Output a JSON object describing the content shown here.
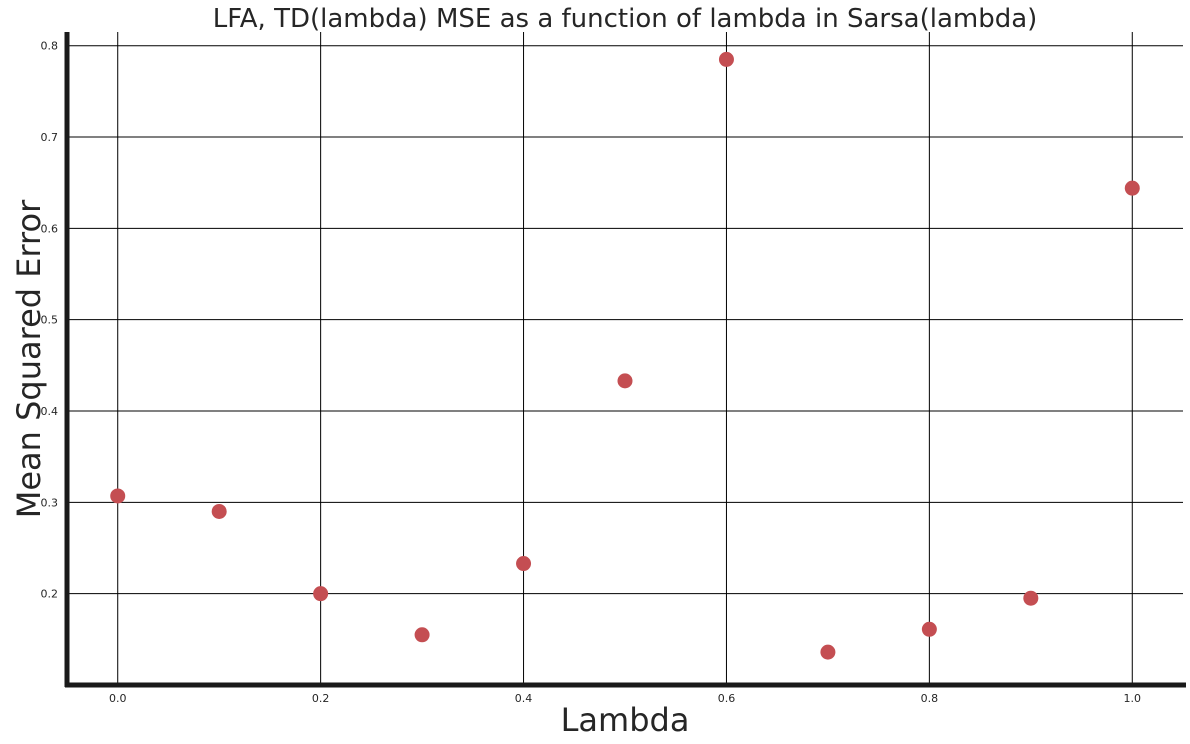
{
  "chart_data": {
    "type": "scatter",
    "title": "LFA, TD(lambda) MSE as a function of lambda in Sarsa(lambda)",
    "xlabel": "Lambda",
    "ylabel": "Mean Squared Error",
    "xlim": [
      -0.05,
      1.05
    ],
    "ylim": [
      0.1,
      0.815
    ],
    "xticks": [
      "0.0",
      "0.2",
      "0.4",
      "0.6",
      "0.8",
      "1.0"
    ],
    "yticks": [
      "0.2",
      "0.3",
      "0.4",
      "0.5",
      "0.6",
      "0.7",
      "0.8"
    ],
    "grid": true,
    "marker_color": "#c44e52",
    "series": [
      {
        "x": [
          0.0,
          0.1,
          0.2,
          0.3,
          0.4,
          0.5,
          0.6,
          0.7,
          0.8,
          0.9,
          1.0
        ],
        "y": [
          0.307,
          0.29,
          0.2,
          0.155,
          0.233,
          0.433,
          0.785,
          0.136,
          0.161,
          0.195,
          0.644
        ]
      }
    ]
  }
}
